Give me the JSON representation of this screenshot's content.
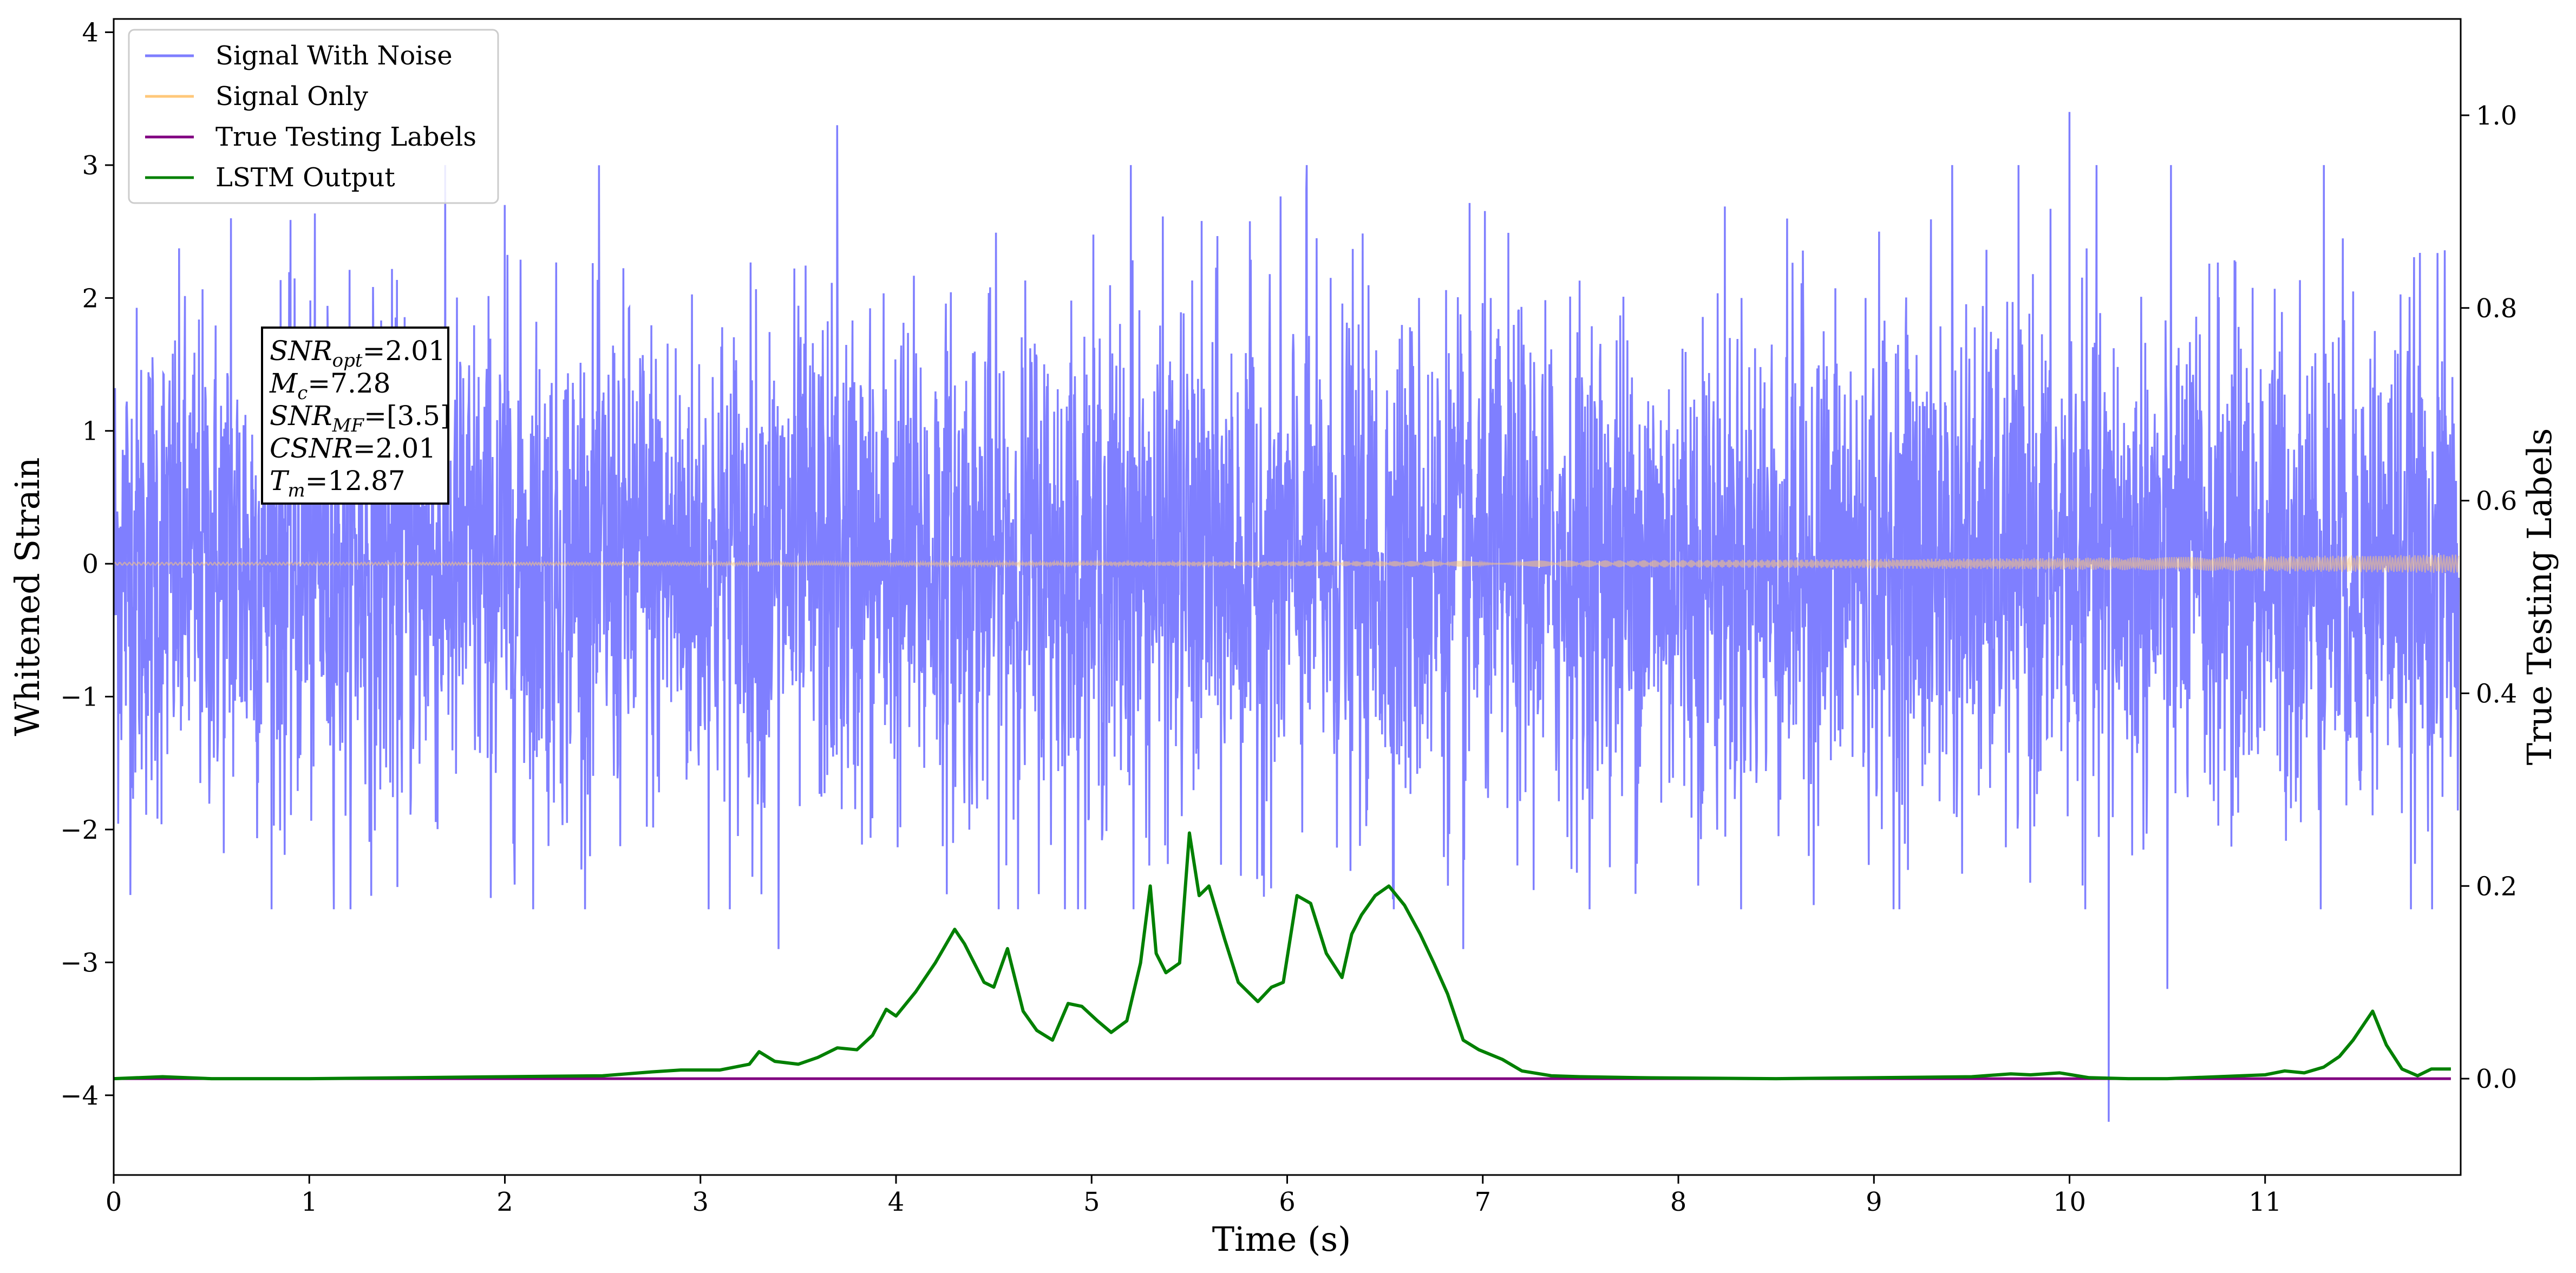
{
  "chart_data": {
    "type": "line",
    "xlabel": "Time (s)",
    "ylabel": "Whitened Strain",
    "ylabel_right": "True Testing Labels",
    "xlim": [
      0,
      12
    ],
    "ylim": [
      -4.6,
      4.1
    ],
    "ylim_right": [
      -0.1,
      1.1
    ],
    "x_ticks": [
      "0",
      "1",
      "2",
      "3",
      "4",
      "5",
      "6",
      "7",
      "8",
      "9",
      "10",
      "11"
    ],
    "y_ticks": [
      "−4",
      "−3",
      "−2",
      "−1",
      "0",
      "1",
      "2",
      "3",
      "4"
    ],
    "y_ticks_right": [
      "0.0",
      "0.2",
      "0.4",
      "0.6",
      "0.8",
      "1.0"
    ],
    "legend_position": "top-left",
    "series": [
      {
        "name": "Signal With Noise",
        "axis": "left",
        "color": "#7f7fff",
        "description_values": "noise, approx. range -4.2 to 3.7",
        "peaks": [
          [
            0.6,
            2.6
          ],
          [
            2.0,
            2.7
          ],
          [
            3.7,
            3.3
          ],
          [
            5.2,
            3.0
          ],
          [
            6.1,
            3.0
          ],
          [
            9.4,
            3.0
          ],
          [
            10.0,
            3.4
          ],
          [
            10.2,
            3.0
          ],
          [
            11.3,
            3.0
          ],
          [
            10.2,
            -4.2
          ],
          [
            3.4,
            -2.9
          ],
          [
            6.9,
            -2.9
          ],
          [
            10.5,
            -3.2
          ]
        ]
      },
      {
        "name": "Signal Only",
        "axis": "left",
        "color": "#ffc87a",
        "amplitude_start": 0.01,
        "amplitude_end": 0.07
      },
      {
        "name": "True Testing Labels",
        "axis": "right",
        "color": "#800080",
        "x": [
          0,
          11.95
        ],
        "values": [
          0,
          0
        ]
      },
      {
        "name": "LSTM Output",
        "axis": "right",
        "color": "#008000",
        "x": [
          0,
          0.25,
          0.5,
          1.0,
          2.0,
          2.5,
          2.75,
          2.9,
          3.1,
          3.25,
          3.3,
          3.38,
          3.5,
          3.6,
          3.7,
          3.8,
          3.88,
          3.95,
          4.0,
          4.1,
          4.2,
          4.3,
          4.35,
          4.45,
          4.5,
          4.57,
          4.65,
          4.72,
          4.8,
          4.88,
          4.95,
          5.03,
          5.1,
          5.18,
          5.25,
          5.3,
          5.33,
          5.38,
          5.45,
          5.5,
          5.55,
          5.6,
          5.68,
          5.75,
          5.85,
          5.92,
          5.98,
          6.05,
          6.12,
          6.2,
          6.28,
          6.33,
          6.38,
          6.45,
          6.52,
          6.6,
          6.68,
          6.75,
          6.82,
          6.9,
          6.98,
          7.1,
          7.2,
          7.35,
          7.5,
          7.8,
          8.5,
          9.5,
          9.7,
          9.8,
          9.95,
          10.1,
          10.3,
          10.5,
          11.0,
          11.1,
          11.2,
          11.3,
          11.38,
          11.45,
          11.55,
          11.62,
          11.7,
          11.78,
          11.85,
          11.95
        ],
        "values": [
          0.0,
          0.002,
          0.0,
          0.0,
          0.002,
          0.003,
          0.007,
          0.009,
          0.009,
          0.015,
          0.028,
          0.018,
          0.015,
          0.022,
          0.032,
          0.03,
          0.045,
          0.072,
          0.065,
          0.09,
          0.12,
          0.155,
          0.14,
          0.1,
          0.095,
          0.135,
          0.07,
          0.05,
          0.04,
          0.078,
          0.075,
          0.06,
          0.048,
          0.06,
          0.12,
          0.2,
          0.13,
          0.11,
          0.12,
          0.255,
          0.19,
          0.2,
          0.145,
          0.1,
          0.08,
          0.095,
          0.1,
          0.19,
          0.182,
          0.13,
          0.105,
          0.15,
          0.17,
          0.19,
          0.2,
          0.18,
          0.15,
          0.12,
          0.088,
          0.04,
          0.03,
          0.02,
          0.008,
          0.003,
          0.002,
          0.001,
          0.0,
          0.002,
          0.005,
          0.004,
          0.006,
          0.001,
          0.0,
          0.0,
          0.004,
          0.008,
          0.006,
          0.012,
          0.023,
          0.04,
          0.07,
          0.035,
          0.01,
          0.003,
          0.01,
          0.01
        ]
      }
    ],
    "annotation": {
      "lines": [
        {
          "sym": "SNR",
          "sub": "opt",
          "val": "=2.01"
        },
        {
          "sym": "M",
          "sub": "c",
          "val": "=7.28"
        },
        {
          "sym": "SNR",
          "sub": "MF",
          "val": "=[3.5]"
        },
        {
          "sym": "CSNR",
          "sub": "",
          "val": "=2.01"
        },
        {
          "sym": "T",
          "sub": "m",
          "val": "=12.87"
        }
      ]
    }
  }
}
